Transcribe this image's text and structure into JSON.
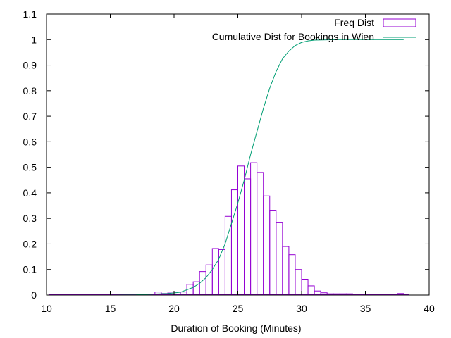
{
  "chart_data": {
    "type": "bar",
    "title": "",
    "xlabel": "Duration of Booking (Minutes)",
    "ylabel": "",
    "xlim": [
      10,
      40
    ],
    "ylim": [
      0,
      1.1
    ],
    "xticks": [
      "10",
      "15",
      "20",
      "25",
      "30",
      "35",
      "40"
    ],
    "yticks": [
      "0",
      "0.1",
      "0.2",
      "0.3",
      "0.4",
      "0.5",
      "0.6",
      "0.7",
      "0.8",
      "0.9",
      "1",
      "1.1"
    ],
    "grid": false,
    "legend_position": "top-right",
    "colors": {
      "freq": "#9400d3",
      "cumulative": "#009e73"
    },
    "series": [
      {
        "name": "Freq Dist",
        "type": "bar",
        "bin_width": 0.5,
        "bins": [
          [
            18.5,
            0.012
          ],
          [
            19.0,
            0.006
          ],
          [
            19.5,
            0.008
          ],
          [
            20.0,
            0.012
          ],
          [
            20.5,
            0.012
          ],
          [
            21.0,
            0.042
          ],
          [
            21.5,
            0.052
          ],
          [
            22.0,
            0.092
          ],
          [
            22.5,
            0.118
          ],
          [
            23.0,
            0.182
          ],
          [
            23.5,
            0.178
          ],
          [
            24.0,
            0.308
          ],
          [
            24.5,
            0.412
          ],
          [
            25.0,
            0.505
          ],
          [
            25.5,
            0.455
          ],
          [
            26.0,
            0.518
          ],
          [
            26.5,
            0.48
          ],
          [
            27.0,
            0.388
          ],
          [
            27.5,
            0.332
          ],
          [
            28.0,
            0.285
          ],
          [
            28.5,
            0.19
          ],
          [
            29.0,
            0.158
          ],
          [
            29.5,
            0.1
          ],
          [
            30.0,
            0.062
          ],
          [
            30.5,
            0.036
          ],
          [
            31.0,
            0.016
          ],
          [
            31.5,
            0.009
          ],
          [
            32.0,
            0.005
          ],
          [
            32.5,
            0.005
          ],
          [
            33.0,
            0.005
          ],
          [
            33.5,
            0.005
          ],
          [
            34.0,
            0.004
          ],
          [
            37.5,
            0.006
          ]
        ]
      },
      {
        "name": "Cumulative Dist for Bookings in Wien",
        "type": "line",
        "points": [
          [
            10.2,
            0.0
          ],
          [
            15.0,
            0.0
          ],
          [
            17.0,
            0.001
          ],
          [
            18.5,
            0.004
          ],
          [
            19.5,
            0.006
          ],
          [
            20.5,
            0.011
          ],
          [
            21.5,
            0.03
          ],
          [
            22.0,
            0.046
          ],
          [
            22.5,
            0.068
          ],
          [
            23.0,
            0.1
          ],
          [
            23.5,
            0.14
          ],
          [
            24.0,
            0.2
          ],
          [
            24.5,
            0.28
          ],
          [
            25.0,
            0.36
          ],
          [
            25.5,
            0.45
          ],
          [
            26.0,
            0.55
          ],
          [
            26.5,
            0.64
          ],
          [
            27.0,
            0.73
          ],
          [
            27.5,
            0.81
          ],
          [
            28.0,
            0.875
          ],
          [
            28.5,
            0.925
          ],
          [
            29.0,
            0.955
          ],
          [
            29.5,
            0.977
          ],
          [
            30.0,
            0.989
          ],
          [
            30.5,
            0.995
          ],
          [
            31.0,
            0.998
          ],
          [
            32.0,
            0.999
          ],
          [
            33.0,
            1.0
          ],
          [
            38.0,
            1.0
          ]
        ]
      }
    ]
  }
}
